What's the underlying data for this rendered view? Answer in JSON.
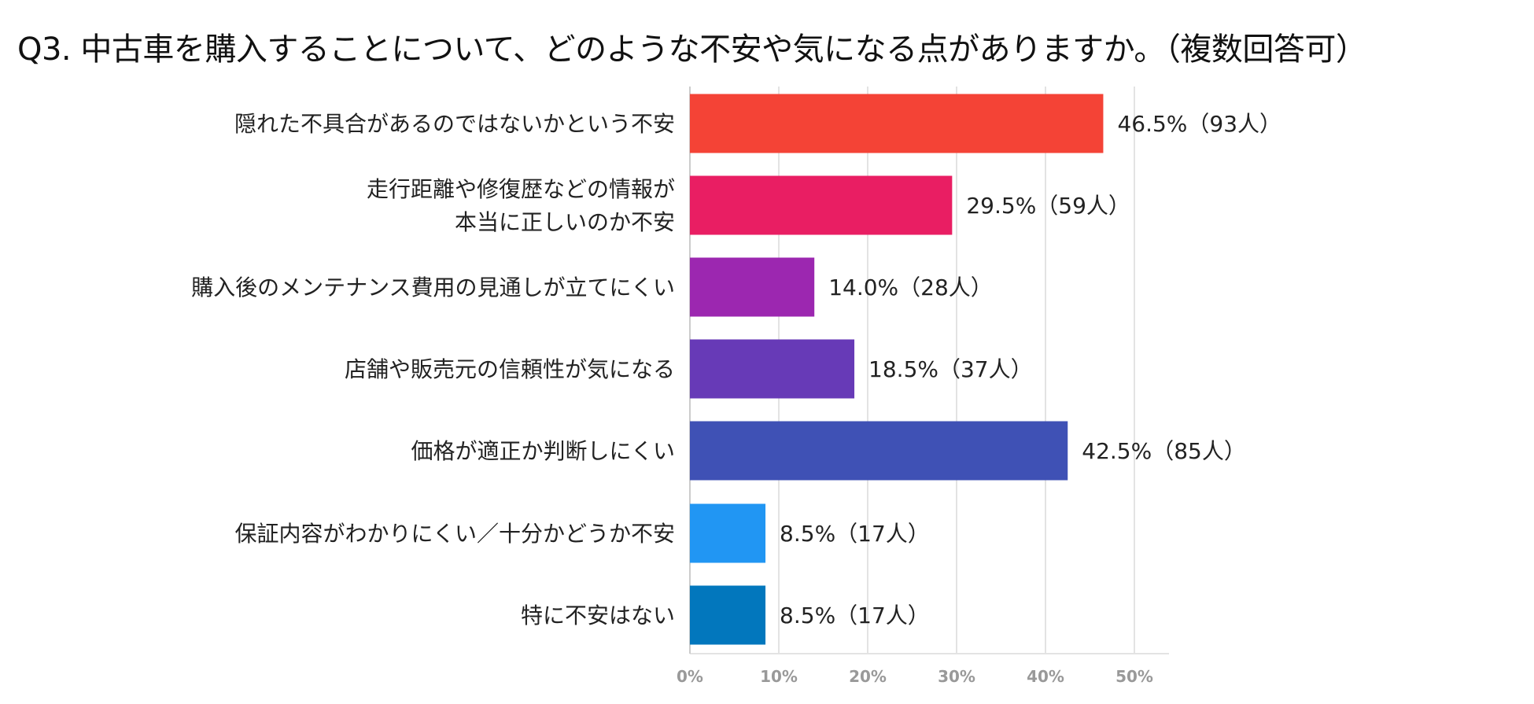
{
  "chart_data": {
    "type": "bar",
    "orientation": "horizontal",
    "title": "Q3. 中古車を購入することについて、どのような不安や気になる点がありますか。（複数回答可）",
    "categories": [
      [
        "隠れた不具合があるのではないかという不安"
      ],
      [
        "走行距離や修復歴などの情報が",
        "本当に正しいのか不安"
      ],
      [
        "購入後のメンテナンス費用の見通しが立てにくい"
      ],
      [
        "店舗や販売元の信頼性が気になる"
      ],
      [
        "価格が適正か判断しにくい"
      ],
      [
        "保証内容がわかりにくい／十分かどうか不安"
      ],
      [
        "特に不安はない"
      ]
    ],
    "values": [
      46.5,
      29.5,
      14.0,
      18.5,
      42.5,
      8.5,
      8.5
    ],
    "data_labels": [
      "46.5%（93人）",
      "29.5%（59人）",
      "14.0%（28人）",
      "18.5%（37人）",
      "42.5%（85人）",
      "8.5%（17人）",
      "8.5%（17人）"
    ],
    "colors": [
      "#F44336",
      "#E91E63",
      "#9C27B0",
      "#673AB7",
      "#3F51B5",
      "#2196F3",
      "#0277BD"
    ],
    "xlim": [
      0,
      55
    ],
    "xticks": [
      0,
      10,
      20,
      30,
      40,
      50
    ],
    "xtick_labels": [
      "0%",
      "10%",
      "20%",
      "30%",
      "40%",
      "50%"
    ],
    "grid": true,
    "xlabel": "",
    "ylabel": ""
  }
}
